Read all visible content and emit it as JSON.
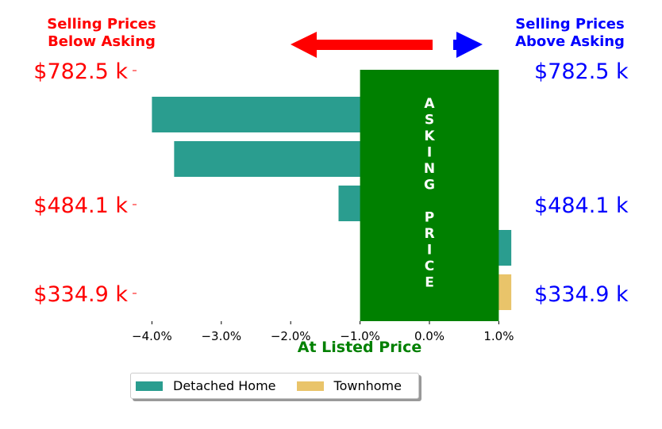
{
  "header": {
    "left_line1": "Selling Prices",
    "left_line2": "Below Asking",
    "right_line1": "Selling Prices",
    "right_line2": "Above Asking",
    "left_color": "#ff0000",
    "right_color": "#0000ff"
  },
  "xlabel": "At Listed Price",
  "xlabel_color": "#008000",
  "center_band_text": "ASKING PRICE",
  "center_band_color": "#008000",
  "arrows": {
    "left": "left-arrow-icon",
    "right": "right-arrow-icon",
    "left_color": "#ff0000",
    "right_color": "#0000ff"
  },
  "legend": {
    "items": [
      {
        "label": "Detached Home",
        "color": "#2a9d8f"
      },
      {
        "label": "Townhome",
        "color": "#e9c46a"
      }
    ]
  },
  "chart_data": {
    "type": "bar",
    "orientation": "horizontal",
    "series": [
      {
        "name": "Detached Home",
        "color": "#2a9d8f",
        "bars": [
          {
            "value": -4.0
          },
          {
            "value": -3.68
          },
          {
            "value": -1.31
          },
          {
            "value": 1.18
          }
        ]
      },
      {
        "name": "Townhome",
        "color": "#e9c46a",
        "bars": [
          {
            "value": 1.18
          }
        ]
      }
    ],
    "center_band": [
      -1.0,
      1.0
    ],
    "xlim": [
      -4.3,
      1.0
    ],
    "x_ticks": [
      "−4.0%",
      "−3.0%",
      "−2.0%",
      "−1.0%",
      "0.0%",
      "1.0%"
    ],
    "x_tick_values": [
      -4.0,
      -3.0,
      -2.0,
      -1.0,
      0.0,
      1.0
    ],
    "y_tick_labels_left": [
      "$782.5 k",
      "$484.1 k",
      "$334.9 k"
    ],
    "y_tick_labels_right": [
      "$782.5 k",
      "$484.1 k",
      "$334.9 k"
    ],
    "y_tick_values": [
      782.5,
      484.1,
      334.9
    ],
    "xlabel": "At Listed Price"
  }
}
